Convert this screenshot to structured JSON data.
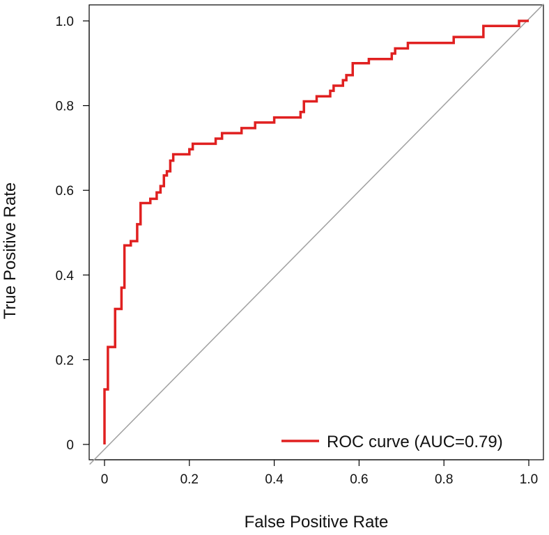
{
  "chart_data": {
    "type": "line",
    "title": "",
    "xlabel": "False Positive Rate",
    "ylabel": "True Positive Rate",
    "xlim": [
      0,
      1
    ],
    "ylim": [
      0,
      1
    ],
    "x_ticks": [
      0,
      0.2,
      0.4,
      0.6,
      0.8,
      1.0
    ],
    "x_tick_labels": [
      "0",
      "0.2",
      "0.4",
      "0.6",
      "0.8",
      "1.0"
    ],
    "y_ticks": [
      0,
      0.2,
      0.4,
      0.6,
      0.8,
      1.0
    ],
    "y_tick_labels": [
      "0",
      "0.2",
      "0.4",
      "0.6",
      "0.8",
      "1.0"
    ],
    "grid": false,
    "legend_position": "bottom-right",
    "series": [
      {
        "name": "ROC curve (AUC=0.79)",
        "color": "#e02020",
        "points": [
          [
            0,
            0
          ],
          [
            0,
            0.13
          ],
          [
            0.008,
            0.13
          ],
          [
            0.008,
            0.23
          ],
          [
            0.025,
            0.23
          ],
          [
            0.025,
            0.32
          ],
          [
            0.04,
            0.32
          ],
          [
            0.04,
            0.37
          ],
          [
            0.047,
            0.37
          ],
          [
            0.047,
            0.47
          ],
          [
            0.062,
            0.47
          ],
          [
            0.062,
            0.48
          ],
          [
            0.077,
            0.48
          ],
          [
            0.077,
            0.52
          ],
          [
            0.085,
            0.52
          ],
          [
            0.085,
            0.57
          ],
          [
            0.108,
            0.57
          ],
          [
            0.108,
            0.58
          ],
          [
            0.123,
            0.58
          ],
          [
            0.123,
            0.595
          ],
          [
            0.132,
            0.595
          ],
          [
            0.132,
            0.61
          ],
          [
            0.14,
            0.61
          ],
          [
            0.14,
            0.635
          ],
          [
            0.147,
            0.635
          ],
          [
            0.147,
            0.645
          ],
          [
            0.155,
            0.645
          ],
          [
            0.155,
            0.67
          ],
          [
            0.162,
            0.67
          ],
          [
            0.162,
            0.685
          ],
          [
            0.2,
            0.685
          ],
          [
            0.2,
            0.697
          ],
          [
            0.208,
            0.697
          ],
          [
            0.208,
            0.71
          ],
          [
            0.262,
            0.71
          ],
          [
            0.262,
            0.722
          ],
          [
            0.277,
            0.722
          ],
          [
            0.277,
            0.735
          ],
          [
            0.323,
            0.735
          ],
          [
            0.323,
            0.747
          ],
          [
            0.355,
            0.747
          ],
          [
            0.355,
            0.76
          ],
          [
            0.4,
            0.76
          ],
          [
            0.4,
            0.772
          ],
          [
            0.462,
            0.772
          ],
          [
            0.462,
            0.785
          ],
          [
            0.47,
            0.785
          ],
          [
            0.47,
            0.81
          ],
          [
            0.5,
            0.81
          ],
          [
            0.5,
            0.822
          ],
          [
            0.532,
            0.822
          ],
          [
            0.532,
            0.835
          ],
          [
            0.54,
            0.835
          ],
          [
            0.54,
            0.847
          ],
          [
            0.562,
            0.847
          ],
          [
            0.562,
            0.86
          ],
          [
            0.57,
            0.86
          ],
          [
            0.57,
            0.872
          ],
          [
            0.585,
            0.872
          ],
          [
            0.585,
            0.9
          ],
          [
            0.623,
            0.9
          ],
          [
            0.623,
            0.91
          ],
          [
            0.677,
            0.91
          ],
          [
            0.677,
            0.923
          ],
          [
            0.685,
            0.923
          ],
          [
            0.685,
            0.935
          ],
          [
            0.715,
            0.935
          ],
          [
            0.715,
            0.948
          ],
          [
            0.823,
            0.948
          ],
          [
            0.823,
            0.962
          ],
          [
            0.893,
            0.962
          ],
          [
            0.893,
            0.988
          ],
          [
            0.977,
            0.988
          ],
          [
            0.977,
            1.0
          ],
          [
            1.0,
            1.0
          ]
        ]
      },
      {
        "name": "reference diagonal",
        "color": "#a0a0a0",
        "points": [
          [
            -0.035,
            -0.047
          ],
          [
            1.035,
            1.04
          ]
        ]
      }
    ]
  }
}
